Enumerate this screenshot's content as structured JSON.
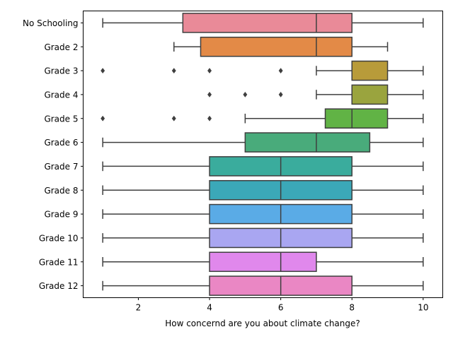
{
  "chart_data": {
    "type": "boxplot",
    "orientation": "horizontal",
    "title": "",
    "xlabel": "How concernd are you about climate change?",
    "ylabel": "",
    "xlim": [
      0.45,
      10.55
    ],
    "xticks": [
      2,
      4,
      6,
      8,
      10
    ],
    "grid": false,
    "line_color": "#3f3f3f",
    "categories": [
      "No Schooling",
      "Grade 2",
      "Grade 3",
      "Grade 4",
      "Grade 5",
      "Grade 6",
      "Grade 7",
      "Grade 8",
      "Grade 9",
      "Grade 10",
      "Grade 11",
      "Grade 12"
    ],
    "series": [
      {
        "category": "No Schooling",
        "color": "#e98a98",
        "whisker_low": 1,
        "q1": 3.25,
        "median": 7,
        "q3": 8,
        "whisker_high": 10,
        "outliers": []
      },
      {
        "category": "Grade 2",
        "color": "#e38a47",
        "whisker_low": 3,
        "q1": 3.75,
        "median": 7,
        "q3": 8,
        "whisker_high": 9,
        "outliers": []
      },
      {
        "category": "Grade 3",
        "color": "#b89b3a",
        "whisker_low": 7,
        "q1": 8,
        "median": 8,
        "q3": 9,
        "whisker_high": 10,
        "outliers": [
          1,
          3,
          4,
          6
        ]
      },
      {
        "category": "Grade 4",
        "color": "#9aa43e",
        "whisker_low": 7,
        "q1": 8,
        "median": 8,
        "q3": 9,
        "whisker_high": 10,
        "outliers": [
          4,
          5,
          6
        ]
      },
      {
        "category": "Grade 5",
        "color": "#61b345",
        "whisker_low": 5,
        "q1": 7.25,
        "median": 8,
        "q3": 9,
        "whisker_high": 10,
        "outliers": [
          1,
          3,
          4
        ]
      },
      {
        "category": "Grade 6",
        "color": "#49ab7b",
        "whisker_low": 1,
        "q1": 5,
        "median": 7,
        "q3": 8.5,
        "whisker_high": 10,
        "outliers": []
      },
      {
        "category": "Grade 7",
        "color": "#3aac9d",
        "whisker_low": 1,
        "q1": 4,
        "median": 6,
        "q3": 8,
        "whisker_high": 10,
        "outliers": []
      },
      {
        "category": "Grade 8",
        "color": "#3ba8b8",
        "whisker_low": 1,
        "q1": 4,
        "median": 6,
        "q3": 8,
        "whisker_high": 10,
        "outliers": []
      },
      {
        "category": "Grade 9",
        "color": "#5aabe6",
        "whisker_low": 1,
        "q1": 4,
        "median": 6,
        "q3": 8,
        "whisker_high": 10,
        "outliers": []
      },
      {
        "category": "Grade 10",
        "color": "#a9a6f1",
        "whisker_low": 1,
        "q1": 4,
        "median": 6,
        "q3": 8,
        "whisker_high": 10,
        "outliers": []
      },
      {
        "category": "Grade 11",
        "color": "#e088ec",
        "whisker_low": 1,
        "q1": 4,
        "median": 6,
        "q3": 7,
        "whisker_high": 10,
        "outliers": []
      },
      {
        "category": "Grade 12",
        "color": "#ea87c4",
        "whisker_low": 1,
        "q1": 4,
        "median": 6,
        "q3": 8,
        "whisker_high": 10,
        "outliers": []
      }
    ]
  }
}
